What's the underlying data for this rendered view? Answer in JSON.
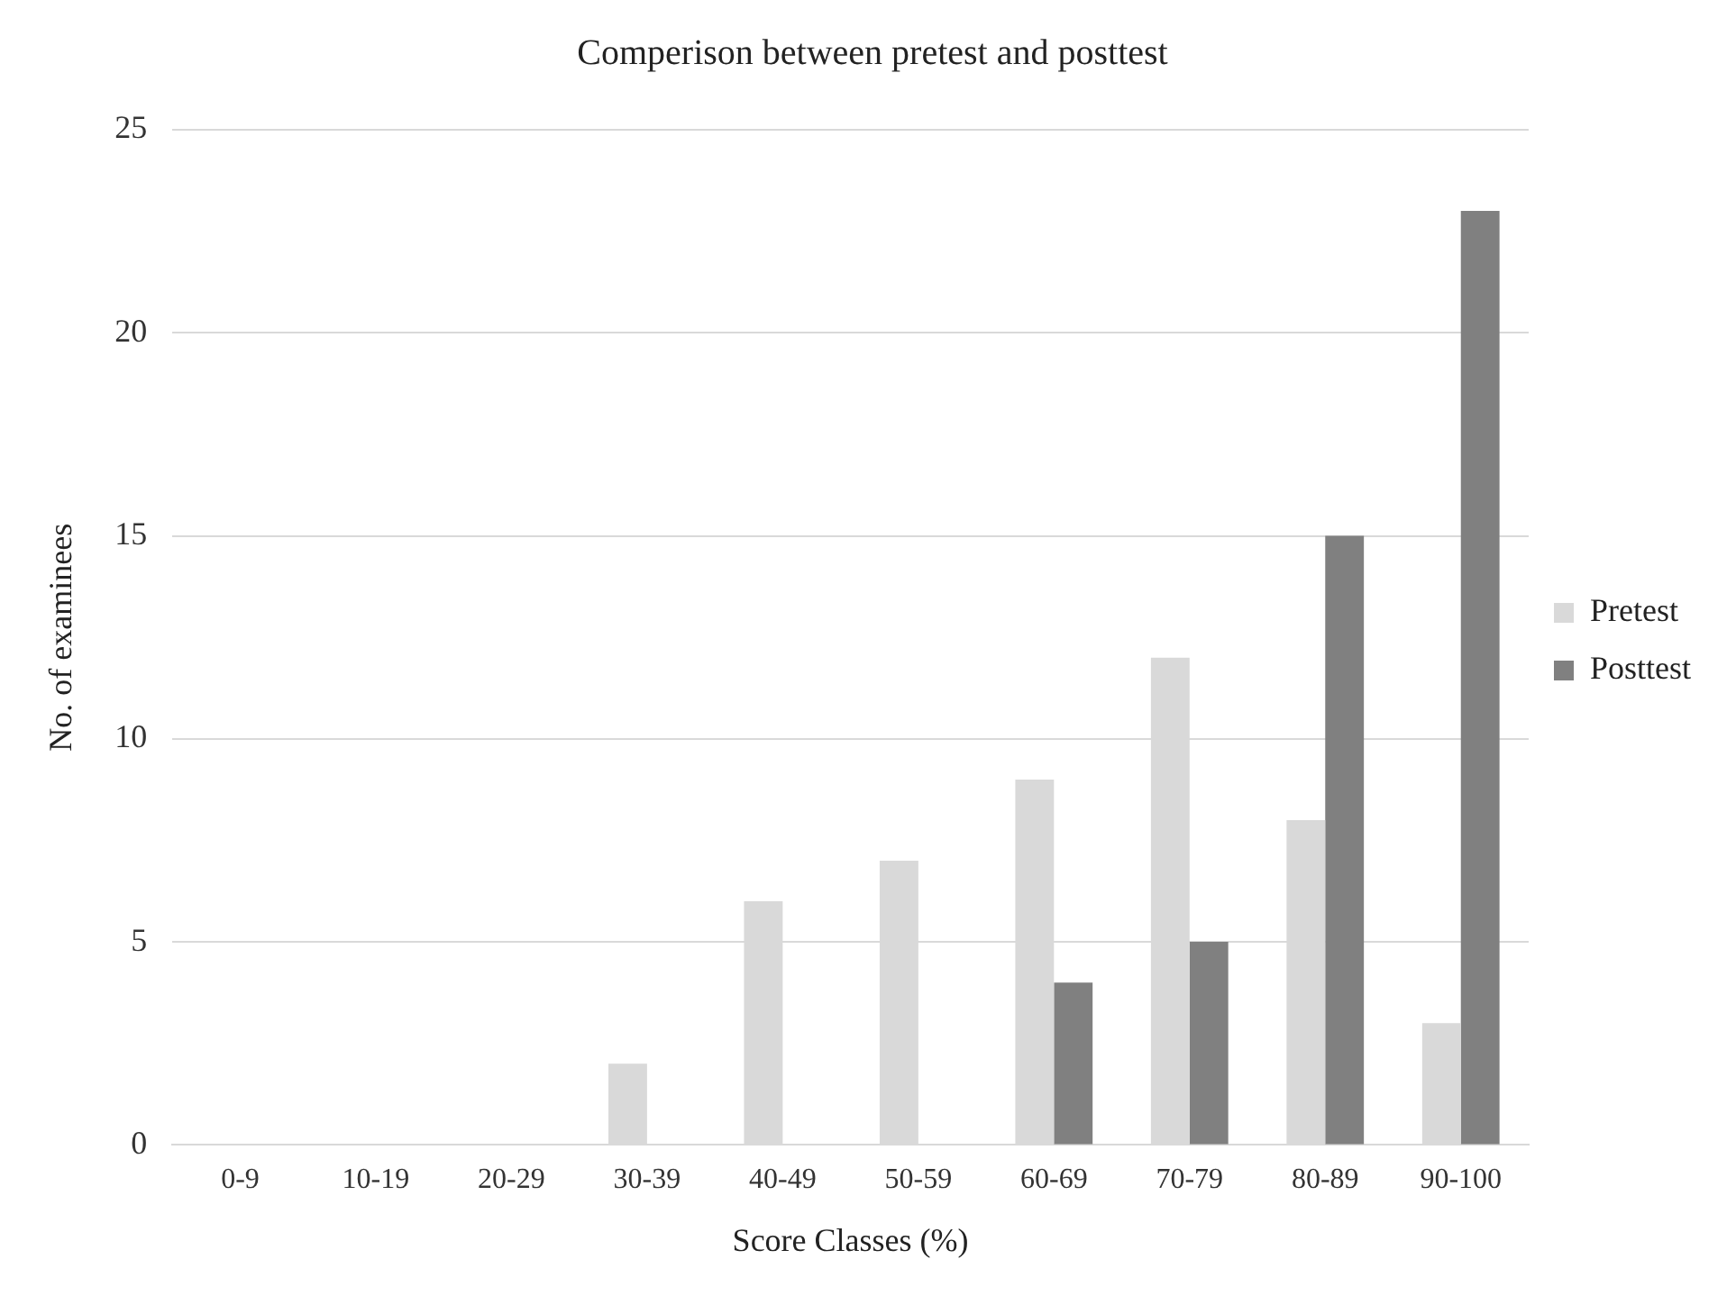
{
  "chart_data": {
    "type": "bar",
    "title": "Comperison between pretest and posttest",
    "xlabel": "Score Classes (%)",
    "ylabel": "No. of examinees",
    "categories": [
      "0-9",
      "10-19",
      "20-29",
      "30-39",
      "40-49",
      "50-59",
      "60-69",
      "70-79",
      "80-89",
      "90-100"
    ],
    "series": [
      {
        "name": "Pretest",
        "color": "#d9d9d9",
        "values": [
          0,
          0,
          0,
          2,
          6,
          7,
          9,
          12,
          8,
          3
        ]
      },
      {
        "name": "Posttest",
        "color": "#808080",
        "values": [
          0,
          0,
          0,
          0,
          0,
          0,
          4,
          5,
          15,
          23
        ]
      }
    ],
    "ylim": [
      0,
      25
    ],
    "yticks": [
      0,
      5,
      10,
      15,
      20,
      25
    ],
    "grid": "y",
    "legend": "right"
  }
}
